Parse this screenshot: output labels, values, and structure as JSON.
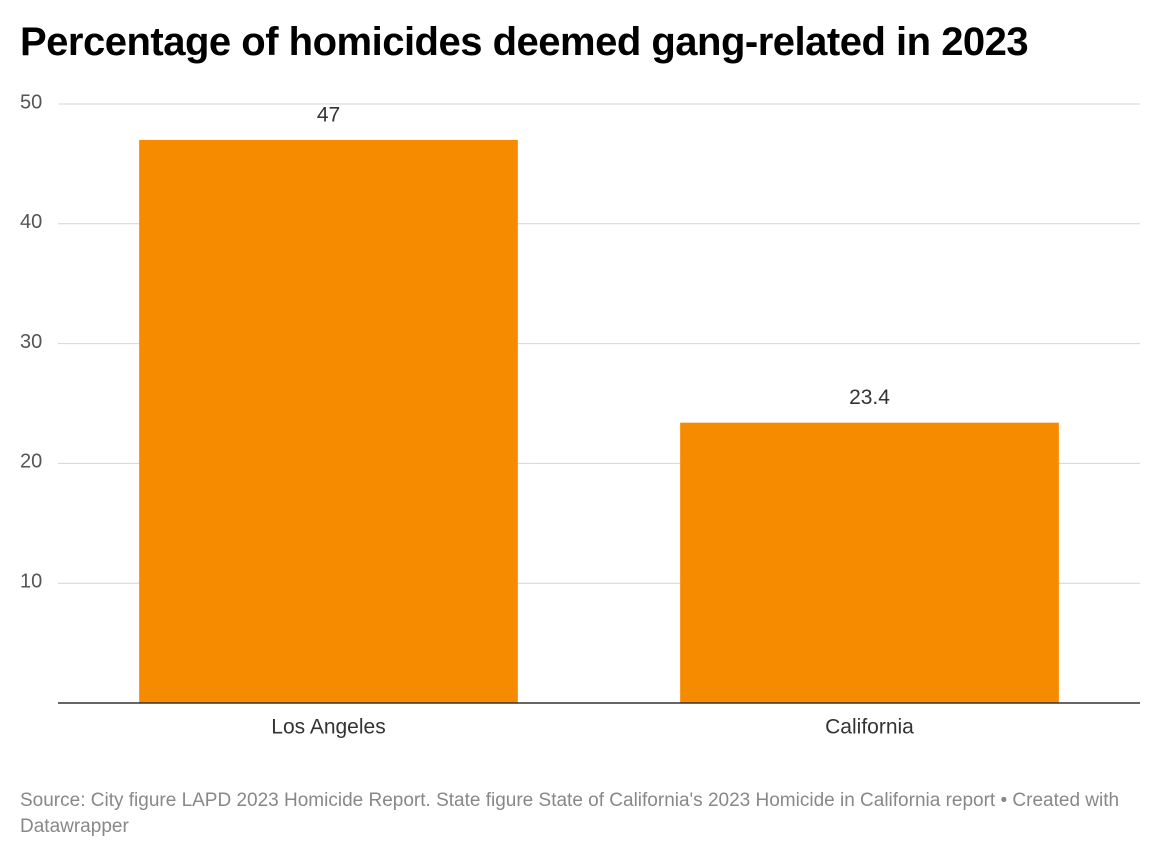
{
  "chart_data": {
    "type": "bar",
    "title": "Percentage of homicides deemed gang-related in 2023",
    "categories": [
      "Los Angeles",
      "California"
    ],
    "values": [
      47,
      23.4
    ],
    "color": "#f78b00",
    "ylim": [
      0,
      50
    ],
    "yticks": [
      10,
      20,
      30,
      40,
      50
    ],
    "grid": true,
    "source": "Source: City figure LAPD 2023 Homicide Report. State figure State of California's 2023 Homicide in California report • Created with Datawrapper"
  }
}
